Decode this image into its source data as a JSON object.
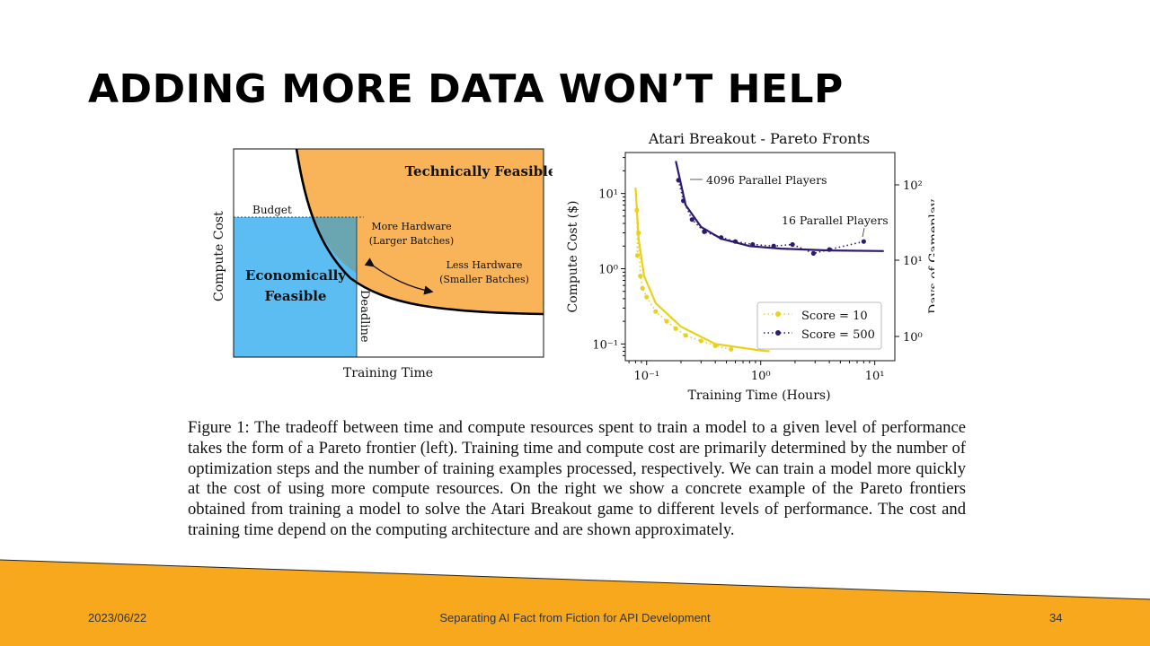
{
  "slide": {
    "title": "ADDING MORE DATA WON’T HELP"
  },
  "left_figure": {
    "ylabel": "Compute Cost",
    "xlabel": "Training Time",
    "region_top": "Technically Feasible",
    "region_bottom_line1": "Economically",
    "region_bottom_line2": "Feasible",
    "budget_label": "Budget",
    "deadline_label": "Deadline",
    "more_hw_line1": "More Hardware",
    "more_hw_line2": "(Larger Batches)",
    "less_hw_line1": "Less Hardware",
    "less_hw_line2": "(Smaller Batches)",
    "colors": {
      "technical": "#f9b45a",
      "economic": "#5cbdf3",
      "overlap": "#6aa6b2"
    }
  },
  "chart_data": {
    "type": "scatter",
    "title": "Atari Breakout - Pareto Fronts",
    "xlabel": "Training Time (Hours)",
    "ylabel": "Compute Cost ($)",
    "y2label": "Days of Gameplay",
    "xscale": "log",
    "yscale": "log",
    "xlim": [
      0.065,
      15
    ],
    "ylim": [
      0.06,
      35
    ],
    "x_ticks": [
      "10⁻¹",
      "10⁰",
      "10¹"
    ],
    "y_ticks": [
      "10⁻¹",
      "10⁰",
      "10¹"
    ],
    "y2_ticks": [
      "10⁰",
      "10¹",
      "10²"
    ],
    "legend_position": "lower-right",
    "series": [
      {
        "name": "Score = 10",
        "color": "#e8d21d",
        "points": [
          [
            0.082,
            6.0
          ],
          [
            0.083,
            1.5
          ],
          [
            0.085,
            3.0
          ],
          [
            0.088,
            0.8
          ],
          [
            0.092,
            0.55
          ],
          [
            0.1,
            0.42
          ],
          [
            0.12,
            0.27
          ],
          [
            0.15,
            0.2
          ],
          [
            0.18,
            0.16
          ],
          [
            0.22,
            0.13
          ],
          [
            0.3,
            0.11
          ],
          [
            0.4,
            0.095
          ],
          [
            0.55,
            0.085
          ]
        ],
        "curve": [
          [
            0.08,
            12
          ],
          [
            0.085,
            2.5
          ],
          [
            0.095,
            0.8
          ],
          [
            0.12,
            0.35
          ],
          [
            0.2,
            0.17
          ],
          [
            0.4,
            0.1
          ],
          [
            1.0,
            0.082
          ],
          [
            1.2,
            0.08
          ]
        ]
      },
      {
        "name": "Score = 500",
        "color": "#2d1a6e",
        "points": [
          [
            0.19,
            15.0
          ],
          [
            0.21,
            8.0
          ],
          [
            0.25,
            4.5
          ],
          [
            0.32,
            3.1
          ],
          [
            0.45,
            2.6
          ],
          [
            0.6,
            2.3
          ],
          [
            0.85,
            2.1
          ],
          [
            1.3,
            2.0
          ],
          [
            1.9,
            2.1
          ],
          [
            2.9,
            1.6
          ],
          [
            4.0,
            1.8
          ],
          [
            8.0,
            2.3
          ]
        ],
        "curve": [
          [
            0.18,
            27
          ],
          [
            0.22,
            7
          ],
          [
            0.3,
            3.6
          ],
          [
            0.45,
            2.5
          ],
          [
            0.8,
            2.0
          ],
          [
            1.5,
            1.85
          ],
          [
            4,
            1.75
          ],
          [
            12,
            1.72
          ]
        ]
      }
    ],
    "annotations": [
      "4096 Parallel Players",
      "16 Parallel Players"
    ]
  },
  "caption": "Figure 1: The tradeoff between time and compute resources spent to train a model to a given level of performance takes the form of a Pareto frontier (left). Training time and compute cost are primarily determined by the number of optimization steps and the number of training examples processed, respectively. We can train a model more quickly at the cost of using more compute resources. On the right we show a concrete example of the Pareto frontiers obtained from training a model to solve the Atari Breakout game to different levels of performance. The cost and training time depend on the computing architecture and are shown approximately.",
  "footer": {
    "date": "2023/06/22",
    "title": "Separating AI Fact from Fiction for API Development",
    "page": "34",
    "band_color": "#f7a81c"
  }
}
